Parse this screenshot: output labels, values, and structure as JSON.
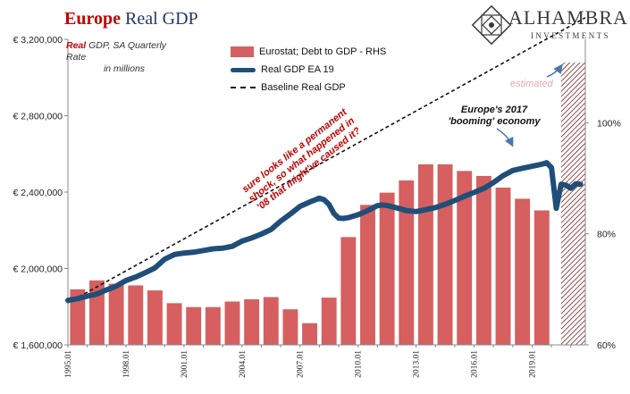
{
  "title": {
    "part1": "Europe",
    "part2": "Real GDP"
  },
  "subtitle": {
    "accent": "Real",
    "rest": "GDP, SA Quarterly Rate",
    "line2": "in millions"
  },
  "logo": {
    "name": "ALHAMBRA",
    "sub": "INVESTMENTS"
  },
  "legend": {
    "bars": "Eurostat; Debt to GDP - RHS",
    "line": "Real GDP EA 19",
    "dashed": "Baseline Real GDP"
  },
  "annotations": {
    "estimated": "estimated",
    "booming_line1": "Europe's 2017",
    "booming_line2": "'booming' economy",
    "shock": "sure looks like a permanent shock, so what happened in '08 that might've caused it?"
  },
  "colors": {
    "bar": "#d65f5f",
    "line": "#1f4e79",
    "dash": "#111111",
    "title_red": "#c00000",
    "title_blue": "#1f3864"
  },
  "chart_data": {
    "type": "bar+line",
    "x_start": 1995.0,
    "x_end": 2021.75,
    "left_axis": {
      "min": 1600000,
      "max": 3200000,
      "ticks": [
        "€ 1,600,000",
        "€ 2,000,000",
        "€ 2,400,000",
        "€ 2,800,000",
        "€ 3,200,000"
      ],
      "tick_values": [
        1600000,
        2000000,
        2400000,
        2800000,
        3200000
      ]
    },
    "right_axis": {
      "min": 60,
      "max": 115,
      "ticks": [
        "60%",
        "80%",
        "100%"
      ],
      "tick_values": [
        60,
        80,
        100
      ]
    },
    "x_ticks": [
      "1995.01",
      "1998.01",
      "2001.01",
      "2004.01",
      "2007.01",
      "2010.01",
      "2013.01",
      "2016.01",
      "2019.01"
    ],
    "x_tick_values": [
      1995,
      1998,
      2001,
      2004,
      2007,
      2010,
      2013,
      2016,
      2019
    ],
    "bars": {
      "name": "Eurostat; Debt to GDP - RHS",
      "years": [
        1995,
        1996,
        1997,
        1998,
        1999,
        2000,
        2001,
        2002,
        2003,
        2004,
        2005,
        2006,
        2007,
        2008,
        2009,
        2010,
        2011,
        2012,
        2013,
        2014,
        2015,
        2016,
        2017,
        2018,
        2019
      ],
      "values": [
        70.0,
        71.6,
        71.0,
        70.7,
        69.8,
        67.5,
        66.8,
        66.8,
        67.8,
        68.2,
        68.6,
        66.4,
        63.9,
        68.5,
        79.4,
        85.2,
        87.4,
        89.6,
        92.5,
        92.5,
        91.3,
        90.4,
        88.3,
        86.3,
        84.2
      ]
    },
    "series": [
      {
        "name": "Real GDP EA 19",
        "x": [
          1995.0,
          1995.5,
          1996.0,
          1996.5,
          1997.0,
          1997.5,
          1998.0,
          1998.5,
          1999.0,
          1999.5,
          2000.0,
          2000.5,
          2001.0,
          2001.5,
          2002.0,
          2002.5,
          2003.0,
          2003.5,
          2004.0,
          2004.5,
          2005.0,
          2005.5,
          2006.0,
          2006.5,
          2007.0,
          2007.5,
          2008.0,
          2008.25,
          2008.5,
          2008.75,
          2009.0,
          2009.25,
          2009.5,
          2010.0,
          2010.5,
          2011.0,
          2011.25,
          2011.5,
          2012.0,
          2012.5,
          2013.0,
          2013.5,
          2014.0,
          2014.5,
          2015.0,
          2015.5,
          2016.0,
          2016.5,
          2017.0,
          2017.5,
          2018.0,
          2018.5,
          2019.0,
          2019.5,
          2019.75,
          2020.0,
          2020.25,
          2020.5,
          2020.75,
          2021.0,
          2021.25,
          2021.5
        ],
        "y": [
          1833000,
          1842000,
          1855000,
          1866000,
          1888000,
          1908000,
          1937000,
          1955000,
          1978000,
          2003000,
          2048000,
          2073000,
          2081000,
          2085000,
          2094000,
          2103000,
          2106000,
          2116000,
          2143000,
          2160000,
          2180000,
          2204000,
          2248000,
          2285000,
          2325000,
          2348000,
          2368000,
          2360000,
          2335000,
          2288000,
          2264000,
          2262000,
          2266000,
          2281000,
          2303000,
          2329000,
          2332000,
          2330000,
          2317000,
          2303000,
          2298000,
          2308000,
          2319000,
          2336000,
          2356000,
          2378000,
          2398000,
          2419000,
          2450000,
          2486000,
          2513000,
          2525000,
          2535000,
          2546000,
          2554000,
          2528000,
          2315000,
          2441000,
          2436000,
          2420000,
          2443000,
          2441000
        ]
      },
      {
        "name": "Baseline Real GDP",
        "x": [
          1995.0,
          2021.75
        ],
        "y": [
          1820000,
          3313000
        ]
      }
    ],
    "estimated_range": [
      2020.5,
      2021.75
    ]
  }
}
